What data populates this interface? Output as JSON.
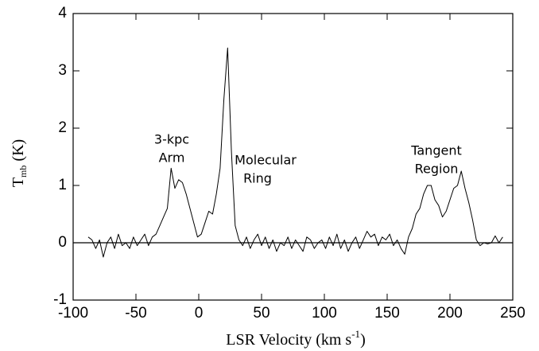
{
  "chart_data": {
    "type": "line",
    "xlabel": {
      "text": "LSR Velocity (km s",
      "sup": "-1",
      "end": ")"
    },
    "ylabel": {
      "text": "T",
      "sub": "mb",
      "end": " (K)"
    },
    "annotations": [
      [
        "3-kpc",
        "Arm"
      ],
      [
        "Molecular",
        "Ring"
      ],
      [
        "Tangent",
        "Region"
      ]
    ],
    "xlim": [
      -100,
      250
    ],
    "xticks": [
      -100,
      -50,
      0,
      50,
      100,
      150,
      200,
      250
    ],
    "ylim": [
      -1,
      4
    ],
    "yticks": [
      -1,
      0,
      1,
      2,
      3,
      4
    ],
    "hline": 0,
    "x": [
      -88,
      -85,
      -82,
      -79,
      -76,
      -73,
      -70,
      -67,
      -64,
      -61,
      -58,
      -55,
      -52,
      -49,
      -46,
      -43,
      -40,
      -37,
      -34,
      -31,
      -28,
      -25,
      -22,
      -19,
      -16,
      -13,
      -10,
      -7,
      -4,
      -1,
      2,
      5,
      8,
      11,
      14,
      17,
      20,
      23,
      26,
      29,
      32,
      35,
      38,
      41,
      44,
      47,
      50,
      53,
      56,
      59,
      62,
      65,
      68,
      71,
      74,
      77,
      80,
      83,
      86,
      89,
      92,
      95,
      98,
      101,
      104,
      107,
      110,
      113,
      116,
      119,
      122,
      125,
      128,
      131,
      134,
      137,
      140,
      143,
      146,
      149,
      152,
      155,
      158,
      161,
      164,
      167,
      170,
      173,
      176,
      179,
      182,
      185,
      188,
      191,
      194,
      197,
      200,
      203,
      206,
      209,
      212,
      215,
      218,
      221,
      224,
      227,
      230,
      233,
      236,
      239,
      242
    ],
    "series": [
      {
        "color": "#000000",
        "values": [
          0.1,
          0.05,
          -0.1,
          0.05,
          -0.25,
          0.0,
          0.1,
          -0.1,
          0.15,
          -0.05,
          0.0,
          -0.1,
          0.1,
          -0.05,
          0.05,
          0.15,
          -0.05,
          0.1,
          0.15,
          0.3,
          0.45,
          0.6,
          1.3,
          0.95,
          1.1,
          1.05,
          0.85,
          0.6,
          0.35,
          0.1,
          0.15,
          0.35,
          0.55,
          0.5,
          0.85,
          1.3,
          2.5,
          3.4,
          1.6,
          0.3,
          0.05,
          -0.05,
          0.1,
          -0.1,
          0.05,
          0.15,
          -0.05,
          0.1,
          -0.1,
          0.05,
          -0.15,
          0.0,
          -0.05,
          0.1,
          -0.1,
          0.05,
          -0.05,
          -0.15,
          0.1,
          0.05,
          -0.1,
          0.0,
          0.05,
          -0.1,
          0.1,
          -0.05,
          0.15,
          -0.1,
          0.05,
          -0.15,
          0.0,
          0.1,
          -0.1,
          0.05,
          0.2,
          0.1,
          0.15,
          -0.05,
          0.1,
          0.05,
          0.15,
          -0.05,
          0.05,
          -0.1,
          -0.2,
          0.1,
          0.25,
          0.5,
          0.6,
          0.85,
          1.0,
          1.0,
          0.75,
          0.65,
          0.45,
          0.55,
          0.75,
          0.95,
          1.0,
          1.25,
          0.95,
          0.7,
          0.4,
          0.05,
          -0.05,
          0.0,
          -0.02,
          0.0,
          0.12,
          0.0,
          0.1
        ]
      }
    ]
  }
}
